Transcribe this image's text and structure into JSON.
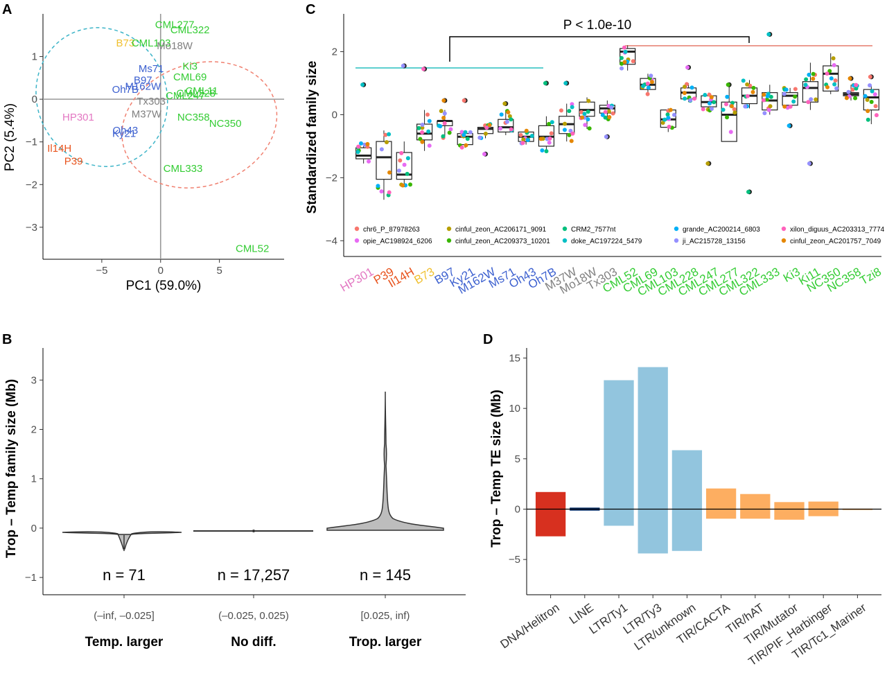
{
  "panels": {
    "A": {
      "label": "A",
      "xlabel": "PC1 (59.0%)",
      "ylabel": "PC2 (5.4%)"
    },
    "B": {
      "label": "B",
      "ylabel": "Trop – Temp family size (Mb)"
    },
    "C": {
      "label": "C",
      "ylabel": "Standardized family size",
      "pvalue": "P < 1.0e-10"
    },
    "D": {
      "label": "D",
      "ylabel": "Trop – Temp TE size (Mb)"
    }
  },
  "colors": {
    "Mixed": "#e377c2",
    "Flint_red": "#e8541e",
    "Il14H": "#e8541e",
    "B73": "#f0c030",
    "Stiff": "#3b5fcf",
    "Popcorn_grey": "#808080",
    "Tropical": "#33cc33",
    "temperate_ellipse": "#3cb4c8",
    "tropical_ellipse": "#f08070",
    "D_red": "#d7301f",
    "D_blue": "#92c5de",
    "D_orange": "#fdae61",
    "D_line": "#08306b"
  },
  "chart_data": [
    {
      "panel": "A",
      "type": "scatter",
      "title": "",
      "xlabel": "PC1 (59.0%)",
      "ylabel": "PC2 (5.4%)",
      "xlim": [
        -10,
        10.5
      ],
      "ylim": [
        -3.75,
        2
      ],
      "xticks": [
        -5,
        0,
        5
      ],
      "yticks": [
        -3,
        -2,
        -1,
        0,
        1
      ],
      "points": [
        {
          "label": "CML277",
          "x": 1.2,
          "y": 1.75,
          "group": "Tropical"
        },
        {
          "label": "CML322",
          "x": 2.5,
          "y": 1.63,
          "group": "Tropical"
        },
        {
          "label": "B73",
          "x": -3.0,
          "y": 1.32,
          "group": "B73"
        },
        {
          "label": "CML103",
          "x": -0.8,
          "y": 1.32,
          "group": "Tropical"
        },
        {
          "label": "Mo18W",
          "x": 1.2,
          "y": 1.25,
          "group": "Popcorn_grey"
        },
        {
          "label": "Ki3",
          "x": 2.5,
          "y": 0.77,
          "group": "Tropical"
        },
        {
          "label": "Ms71",
          "x": -0.8,
          "y": 0.72,
          "group": "Stiff"
        },
        {
          "label": "CML69",
          "x": 2.5,
          "y": 0.52,
          "group": "Tropical"
        },
        {
          "label": "B97",
          "x": -1.5,
          "y": 0.45,
          "group": "Stiff"
        },
        {
          "label": "M162W",
          "x": -1.5,
          "y": 0.3,
          "group": "Stiff"
        },
        {
          "label": "CML11",
          "x": 3.5,
          "y": 0.2,
          "group": "Tropical"
        },
        {
          "label": "CML228",
          "x": 3.0,
          "y": 0.14,
          "group": "Tropical"
        },
        {
          "label": "CML247",
          "x": 2.1,
          "y": 0.08,
          "group": "Tropical"
        },
        {
          "label": "Oh7B",
          "x": -3.0,
          "y": 0.23,
          "group": "Stiff"
        },
        {
          "label": "Tx303",
          "x": -0.8,
          "y": -0.05,
          "group": "Popcorn_grey"
        },
        {
          "label": "M37W",
          "x": -1.2,
          "y": -0.35,
          "group": "Popcorn_grey"
        },
        {
          "label": "HP301",
          "x": -7.0,
          "y": -0.42,
          "group": "Mixed"
        },
        {
          "label": "NC358",
          "x": 2.8,
          "y": -0.42,
          "group": "Tropical"
        },
        {
          "label": "NC350",
          "x": 5.5,
          "y": -0.57,
          "group": "Tropical"
        },
        {
          "label": "Oh43",
          "x": -3.0,
          "y": -0.73,
          "group": "Stiff"
        },
        {
          "label": "Ky21",
          "x": -3.1,
          "y": -0.8,
          "group": "Stiff"
        },
        {
          "label": "Il14H",
          "x": -8.6,
          "y": -1.15,
          "group": "Il14H"
        },
        {
          "label": "P39",
          "x": -7.4,
          "y": -1.45,
          "group": "Flint_red"
        },
        {
          "label": "CML333",
          "x": 1.9,
          "y": -1.62,
          "group": "Tropical"
        },
        {
          "label": "CML52",
          "x": 7.8,
          "y": -3.5,
          "group": "Tropical"
        }
      ],
      "ellipses": [
        {
          "group": "Temperate",
          "cx": -5.0,
          "cy": 0.05,
          "rx": 5.5,
          "ry": 1.65,
          "rotation_deg": -25
        },
        {
          "group": "Tropical",
          "cx": 3.3,
          "cy": -0.6,
          "rx": 5.2,
          "ry": 1.85,
          "rotation_deg": 72
        }
      ]
    },
    {
      "panel": "B",
      "type": "violin",
      "title": "",
      "ylabel": "Trop – Temp family size (Mb)",
      "ylim": [
        -1.35,
        3.65
      ],
      "yticks": [
        -1,
        0,
        1,
        2,
        3
      ],
      "categories": [
        "Temp. larger",
        "No diff.",
        "Trop. larger"
      ],
      "intervals": [
        "(–inf, –0.025]",
        "(–0.025, 0.025)",
        "[0.025, inf)"
      ],
      "counts": [
        "n = 71",
        "n = 17,257",
        "n = 145"
      ],
      "ranges": [
        [
          -0.41,
          -0.02
        ],
        [
          -0.01,
          0.01
        ],
        [
          0.03,
          2.9
        ]
      ]
    },
    {
      "panel": "C",
      "type": "box",
      "title": "",
      "ylabel": "Standardized family size",
      "ylim": [
        -4.5,
        3.2
      ],
      "yticks": [
        -4,
        -2,
        0,
        2
      ],
      "categories": [
        "HP301",
        "P39",
        "Il14H",
        "B73",
        "B97",
        "Ky21",
        "M162W",
        "Ms71",
        "Oh43",
        "Oh7B",
        "M37W",
        "Mo18W",
        "Tx303",
        "CML52",
        "CML69",
        "CML103",
        "CML228",
        "CML247",
        "CML277",
        "CML322",
        "CML333",
        "Ki3",
        "Ki11",
        "NC350",
        "NC358",
        "Tzi8"
      ],
      "category_groups": [
        "Mixed",
        "Flint_red",
        "Il14H",
        "B73",
        "Stiff",
        "Stiff",
        "Stiff",
        "Stiff",
        "Stiff",
        "Stiff",
        "Popcorn_grey",
        "Popcorn_grey",
        "Popcorn_grey",
        "Tropical",
        "Tropical",
        "Tropical",
        "Tropical",
        "Tropical",
        "Tropical",
        "Tropical",
        "Tropical",
        "Tropical",
        "Tropical",
        "Tropical",
        "Tropical",
        "Tropical"
      ],
      "boxes": [
        [
          -1.55,
          -1.4,
          -1.3,
          -1.05,
          -0.9
        ],
        [
          -2.7,
          -2.05,
          -1.35,
          -0.85,
          -0.5
        ],
        [
          -2.3,
          -2.05,
          -1.9,
          -1.2,
          -0.85
        ],
        [
          -1.15,
          -0.8,
          -0.6,
          -0.3,
          0.15
        ],
        [
          -0.75,
          -0.35,
          -0.2,
          -0.2,
          0.15
        ],
        [
          -1.05,
          -0.95,
          -0.7,
          -0.6,
          -0.5
        ],
        [
          -0.75,
          -0.6,
          -0.45,
          -0.4,
          -0.3
        ],
        [
          -0.65,
          -0.55,
          -0.4,
          -0.15,
          0.15
        ],
        [
          -0.95,
          -0.85,
          -0.7,
          -0.55,
          -0.45
        ],
        [
          -1.2,
          -1.0,
          -0.7,
          -0.35,
          -0.05
        ],
        [
          -0.85,
          -0.6,
          -0.3,
          -0.05,
          0.35
        ],
        [
          -0.45,
          -0.05,
          0.15,
          0.4,
          0.55
        ],
        [
          -0.15,
          0.05,
          0.2,
          0.3,
          0.45
        ],
        [
          1.4,
          1.6,
          2.0,
          2.1,
          2.2
        ],
        [
          0.65,
          0.8,
          0.95,
          1.15,
          1.3
        ],
        [
          -0.55,
          -0.4,
          -0.15,
          0.15,
          0.2
        ],
        [
          0.4,
          0.5,
          0.7,
          0.85,
          1.0
        ],
        [
          0.1,
          0.25,
          0.4,
          0.6,
          0.7
        ],
        [
          -0.6,
          -0.85,
          0.0,
          0.4,
          0.95
        ],
        [
          0.2,
          0.35,
          0.6,
          0.85,
          1.1
        ],
        [
          0.0,
          0.15,
          0.45,
          0.7,
          0.95
        ],
        [
          0.2,
          0.3,
          0.6,
          0.7,
          0.85
        ],
        [
          0.15,
          0.4,
          0.85,
          1.05,
          1.65
        ],
        [
          0.65,
          0.75,
          1.3,
          1.55,
          1.95
        ],
        [
          0.45,
          0.6,
          0.65,
          0.7,
          0.95
        ],
        [
          -0.3,
          0.15,
          0.55,
          0.8,
          0.95
        ]
      ],
      "outliers": [
        [
          0.95
        ],
        [],
        [
          1.55
        ],
        [
          1.45
        ],
        [
          0.45
        ],
        [
          0.45
        ],
        [
          -1.25
        ],
        [
          0.35
        ],
        [],
        [
          1.0
        ],
        [
          1.0
        ],
        [],
        [
          -0.7
        ],
        [],
        [],
        [],
        [
          1.5
        ],
        [
          -1.55
        ],
        [
          0.95
        ],
        [
          -2.45
        ],
        [
          2.55
        ],
        [
          -0.35
        ],
        [
          -1.55
        ],
        [],
        [
          1.15
        ],
        [
          1.2
        ]
      ],
      "legend": [
        {
          "name": "chr6_P_87978263",
          "color": "#f8766d"
        },
        {
          "name": "opie_AC198924_6206",
          "color": "#e76bf3"
        },
        {
          "name": "cinful_zeon_AC206171_9091",
          "color": "#b79f00"
        },
        {
          "name": "cinful_zeon_AC209373_10201",
          "color": "#39b600"
        },
        {
          "name": "CRM2_7577nt",
          "color": "#00bf7d"
        },
        {
          "name": "doke_AC197224_5479",
          "color": "#00bfc4"
        },
        {
          "name": "grande_AC200214_6803",
          "color": "#00b0f6"
        },
        {
          "name": "ji_AC215728_13156",
          "color": "#9590ff"
        },
        {
          "name": "xilon_diguus_AC203313_7774",
          "color": "#ff62bc"
        },
        {
          "name": "cinful_zeon_AC201757_7049",
          "color": "#e58700"
        }
      ]
    },
    {
      "panel": "D",
      "type": "bar",
      "title": "",
      "ylabel": "Trop – Temp TE size (Mb)",
      "ylim": [
        -8.5,
        16
      ],
      "yticks": [
        -5,
        0,
        5,
        10,
        15
      ],
      "categories": [
        "DNA/Helitron",
        "LINE",
        "LTR/Ty1",
        "LTR/Ty3",
        "LTR/unknown",
        "TIR/CACTA",
        "TIR/hAT",
        "TIR/Mutator",
        "TIR/PIF_Harbinger",
        "TIR/Tc1_Mariner"
      ],
      "positive": [
        1.7,
        0.15,
        12.8,
        14.1,
        5.85,
        2.05,
        1.5,
        0.7,
        0.75,
        0.05
      ],
      "negative": [
        -2.7,
        -0.15,
        -1.65,
        -4.4,
        -4.15,
        -0.95,
        -0.95,
        -1.05,
        -0.7,
        -0.05
      ],
      "bar_colors": [
        "D_red",
        "D_line",
        "D_blue",
        "D_blue",
        "D_blue",
        "D_orange",
        "D_orange",
        "D_orange",
        "D_orange",
        "D_orange"
      ]
    }
  ]
}
